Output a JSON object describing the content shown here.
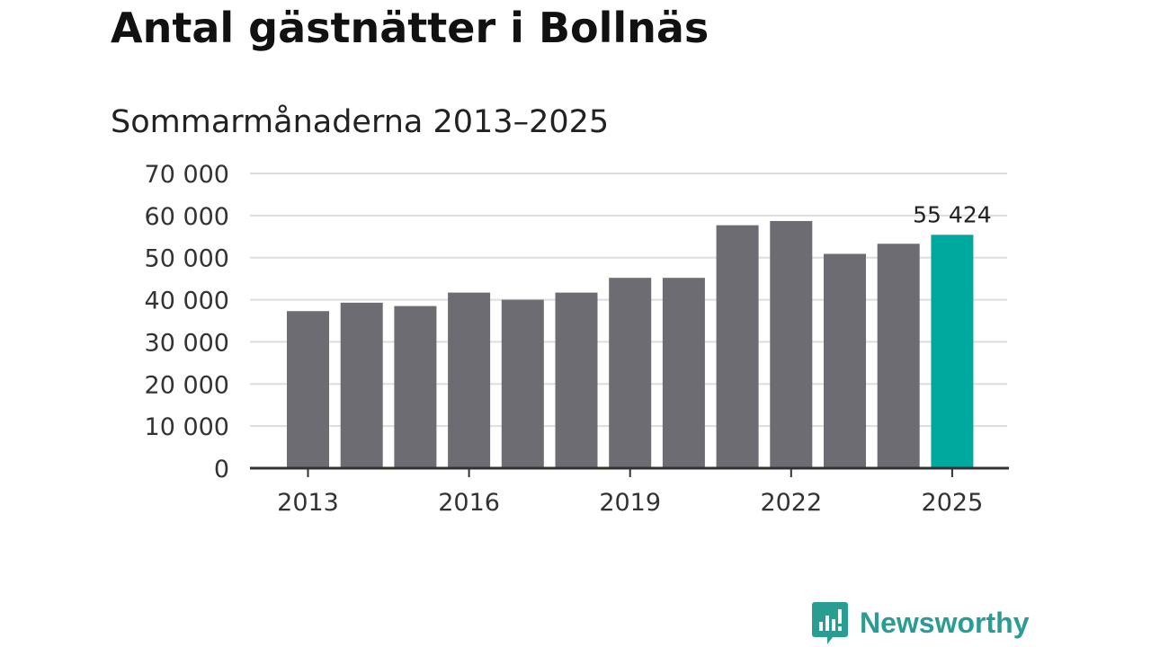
{
  "chart_data": {
    "type": "bar",
    "title": "Antal gästnätter i Bollnäs",
    "subtitle": "Sommarmånaderna 2013–2025",
    "categories": [
      "2013",
      "2014",
      "2015",
      "2016",
      "2017",
      "2018",
      "2019",
      "2020",
      "2021",
      "2022",
      "2023",
      "2024",
      "2025"
    ],
    "values": [
      37300,
      39300,
      38500,
      41700,
      40000,
      41700,
      45200,
      45200,
      57700,
      58700,
      50900,
      53300,
      55424
    ],
    "x_tick_labels": [
      "2013",
      "2016",
      "2019",
      "2022",
      "2025"
    ],
    "y_ticks": [
      0,
      10000,
      20000,
      30000,
      40000,
      50000,
      60000,
      70000
    ],
    "y_tick_labels": [
      "0",
      "10 000",
      "20 000",
      "30 000",
      "40 000",
      "50 000",
      "60 000",
      "70 000"
    ],
    "ylim": [
      0,
      70000
    ],
    "grid": true,
    "highlight": {
      "category": "2025",
      "label": "55 424"
    },
    "colors": {
      "bar": "#6d6c72",
      "highlight": "#00a99d",
      "grid": "#dddddd",
      "axis": "#333333"
    }
  },
  "branding": {
    "name": "Newsworthy",
    "icon": "newsworthy-chart-bubble-icon",
    "color": "#2a9d93"
  }
}
